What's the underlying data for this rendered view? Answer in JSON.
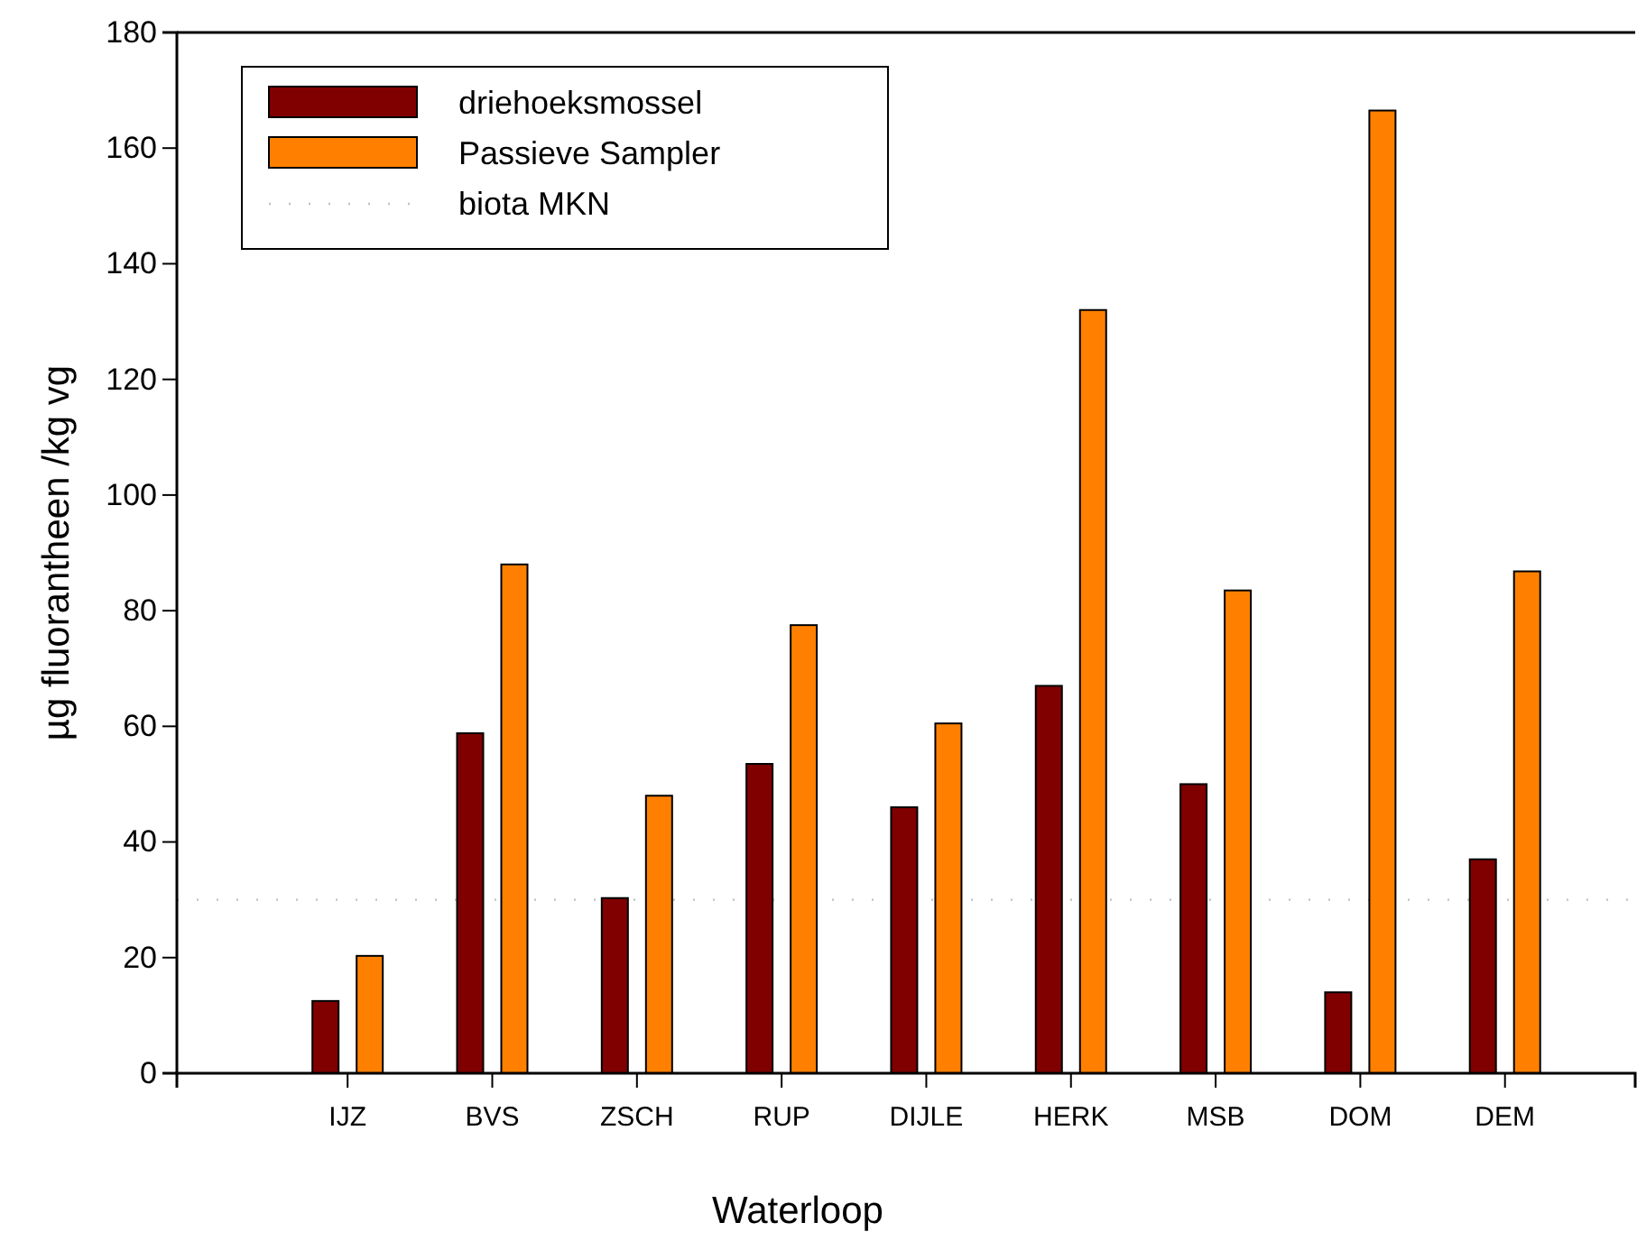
{
  "chart_data": {
    "type": "bar",
    "xlabel": "Waterloop",
    "ylabel": "µg fluorantheen /kg vg",
    "categories": [
      "IJZ",
      "BVS",
      "ZSCH",
      "RUP",
      "DIJLE",
      "HERK",
      "MSB",
      "DOM",
      "DEM"
    ],
    "series": [
      {
        "name": "driehoeksmossel",
        "color": "#800000",
        "values": [
          12.5,
          58.8,
          30.3,
          53.5,
          46,
          67,
          50,
          14,
          37
        ]
      },
      {
        "name": "Passieve Sampler",
        "color": "#ff8000",
        "values": [
          20.3,
          88,
          48,
          77.5,
          60.5,
          132,
          83.5,
          166.5,
          86.8
        ]
      }
    ],
    "ref_lines": [
      {
        "axis": "y",
        "value": 30,
        "label": "biota MKN",
        "color": "#c0c0c0",
        "line_style": "dotted"
      }
    ],
    "ylim": [
      0,
      180
    ],
    "yticks": [
      0,
      20,
      40,
      60,
      80,
      100,
      120,
      140,
      160,
      180
    ],
    "grid": false,
    "legend": "top left"
  }
}
